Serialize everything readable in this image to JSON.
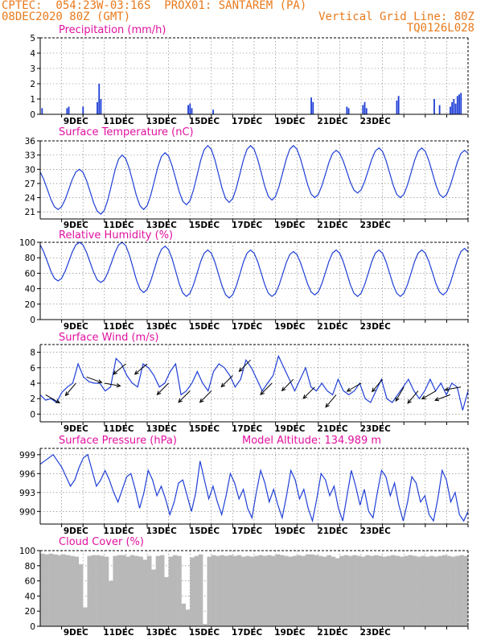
{
  "header": {
    "line1": "CPTEC:  054:23W-03:16S  PROX01: SANTAREM (PA)",
    "line2_left": "08DEC2020 80Z (GMT)",
    "line2_right": "Vertical Grid Line: 80Z",
    "line3_right": "TQ0126L028"
  },
  "colors": {
    "header": "#e87a1c",
    "title": "#e0119f",
    "series": "#1f3fd6",
    "axis": "#000000",
    "cloud": "#b8b8b8",
    "arrow": "#000000"
  },
  "date_ticks": [
    "9DEC",
    "11DEC",
    "13DEC",
    "15DEC",
    "17DEC",
    "19DEC",
    "21DEC",
    "23DEC"
  ],
  "chart_data": [
    {
      "type": "bar",
      "title": "Precipitation (mm/h)",
      "ylim": [
        0,
        5
      ],
      "yticks": [
        "0",
        "1",
        "2",
        "3",
        "4",
        "5"
      ],
      "x_unit": "hours since 08DEC2020 80Z",
      "events": [
        {
          "x": 1,
          "y": 0.4
        },
        {
          "x": 15,
          "y": 0.4
        },
        {
          "x": 16,
          "y": 0.5
        },
        {
          "x": 24,
          "y": 0.5
        },
        {
          "x": 32,
          "y": 0.8
        },
        {
          "x": 33,
          "y": 2.0
        },
        {
          "x": 34,
          "y": 1.0
        },
        {
          "x": 83,
          "y": 0.6
        },
        {
          "x": 84,
          "y": 0.7
        },
        {
          "x": 85,
          "y": 0.4
        },
        {
          "x": 97,
          "y": 0.3
        },
        {
          "x": 152,
          "y": 1.1
        },
        {
          "x": 153,
          "y": 0.8
        },
        {
          "x": 172,
          "y": 0.5
        },
        {
          "x": 173,
          "y": 0.4
        },
        {
          "x": 181,
          "y": 0.6
        },
        {
          "x": 182,
          "y": 0.8
        },
        {
          "x": 183,
          "y": 0.4
        },
        {
          "x": 200,
          "y": 0.9
        },
        {
          "x": 201,
          "y": 1.2
        },
        {
          "x": 221,
          "y": 1.0
        },
        {
          "x": 224,
          "y": 0.6
        },
        {
          "x": 230,
          "y": 0.5
        },
        {
          "x": 231,
          "y": 0.8
        },
        {
          "x": 232,
          "y": 1.0
        },
        {
          "x": 233,
          "y": 0.7
        },
        {
          "x": 234,
          "y": 1.2
        },
        {
          "x": 235,
          "y": 1.3
        },
        {
          "x": 236,
          "y": 1.4
        }
      ],
      "grid": true
    },
    {
      "type": "line",
      "title": "Surface Temperature (nC)",
      "ylim": [
        19.5,
        36
      ],
      "yticks": [
        "21",
        "24",
        "27",
        "30",
        "33",
        "36"
      ],
      "peaks": [
        30.0,
        33.0,
        33.5,
        35.0,
        35.0,
        35.0,
        34.0,
        34.5,
        34.5,
        34.0,
        33.0,
        32.0,
        33.0,
        34.0,
        33.0,
        31.5
      ],
      "troughs": [
        21.5,
        20.5,
        21.5,
        22.5,
        23.0,
        23.5,
        24.0,
        25.0,
        24.0,
        24.0,
        25.0,
        25.0,
        24.0,
        24.5,
        25.0,
        25.0
      ],
      "grid": true
    },
    {
      "type": "line",
      "title": "Relative Humidity (%)",
      "ylim": [
        0,
        100
      ],
      "yticks": [
        "0",
        "20",
        "40",
        "60",
        "80",
        "100"
      ],
      "peaks": [
        100,
        100,
        95,
        90,
        90,
        88,
        90,
        90,
        90,
        92,
        90,
        85,
        82,
        85,
        93,
        92
      ],
      "troughs": [
        50,
        48,
        35,
        30,
        28,
        30,
        32,
        30,
        30,
        32,
        32,
        38,
        42,
        40,
        38,
        45
      ],
      "grid": true
    },
    {
      "type": "line",
      "title": "Surface Wind (m/s)",
      "ylim": [
        -1,
        9
      ],
      "yticks": [
        "0",
        "2",
        "4",
        "6",
        "8"
      ],
      "values": [
        2.5,
        1.8,
        2.0,
        1.5,
        2.8,
        3.5,
        4.0,
        6.5,
        4.8,
        4.2,
        4.0,
        4.0,
        3.0,
        3.5,
        7.2,
        6.5,
        5.0,
        4.0,
        3.5,
        6.5,
        6.0,
        5.0,
        3.5,
        4.0,
        5.5,
        6.5,
        2.5,
        3.0,
        4.0,
        5.5,
        4.0,
        3.0,
        5.5,
        6.5,
        6.0,
        5.0,
        3.5,
        4.5,
        7.0,
        6.0,
        4.5,
        3.0,
        4.0,
        5.0,
        7.5,
        6.0,
        4.5,
        3.0,
        4.5,
        6.0,
        3.5,
        3.0,
        4.0,
        3.0,
        2.5,
        4.5,
        3.0,
        2.5,
        3.0,
        4.0,
        2.0,
        1.5,
        3.0,
        4.5,
        2.0,
        1.5,
        2.5,
        3.5,
        4.5,
        3.0,
        2.0,
        3.0,
        4.5,
        3.0,
        4.0,
        2.5,
        4.0,
        3.5,
        0.5,
        3.0
      ],
      "arrows": [
        {
          "t": 3,
          "dir": 300
        },
        {
          "t": 20,
          "dir": 40
        },
        {
          "t": 26,
          "dir": 290
        },
        {
          "t": 36,
          "dir": 280
        },
        {
          "t": 48,
          "dir": 50
        },
        {
          "t": 60,
          "dir": 50
        },
        {
          "t": 72,
          "dir": 45
        },
        {
          "t": 84,
          "dir": 45
        },
        {
          "t": 96,
          "dir": 45
        },
        {
          "t": 108,
          "dir": 45
        },
        {
          "t": 118,
          "dir": 45
        },
        {
          "t": 130,
          "dir": 45
        },
        {
          "t": 142,
          "dir": 45
        },
        {
          "t": 154,
          "dir": 45
        },
        {
          "t": 166,
          "dir": 40
        },
        {
          "t": 180,
          "dir": 60
        },
        {
          "t": 192,
          "dir": 40
        },
        {
          "t": 204,
          "dir": 30
        },
        {
          "t": 212,
          "dir": 40
        },
        {
          "t": 222,
          "dir": 60
        },
        {
          "t": 230,
          "dir": 70
        },
        {
          "t": 236,
          "dir": 80
        }
      ],
      "grid": true
    },
    {
      "type": "line",
      "title": "Surface Pressure (hPa)",
      "annotation": "Model Altitude: 134.989  m",
      "ylim": [
        988.0,
        1000.0
      ],
      "yticks": [
        "990",
        "993",
        "996",
        "999"
      ],
      "values": [
        997.5,
        998.0,
        998.5,
        999.0,
        998.0,
        997.0,
        995.5,
        994.0,
        995.0,
        997.0,
        998.5,
        999.0,
        996.5,
        994.0,
        995.0,
        996.5,
        995.0,
        993.0,
        991.5,
        993.5,
        995.5,
        996.0,
        993.5,
        990.5,
        993.0,
        996.5,
        995.0,
        992.5,
        994.0,
        992.0,
        989.5,
        991.5,
        994.5,
        995.0,
        992.5,
        990.0,
        993.0,
        998.0,
        995.0,
        992.0,
        994.0,
        991.5,
        989.5,
        992.5,
        996.0,
        994.5,
        992.0,
        993.5,
        990.5,
        989.0,
        993.0,
        996.5,
        994.5,
        991.5,
        993.5,
        991.0,
        989.0,
        992.5,
        996.5,
        995.0,
        992.0,
        993.5,
        990.5,
        988.5,
        992.0,
        996.0,
        995.0,
        992.5,
        994.0,
        990.5,
        988.5,
        992.5,
        996.5,
        994.0,
        991.0,
        993.5,
        990.0,
        989.0,
        993.0,
        996.5,
        995.5,
        992.5,
        994.5,
        991.0,
        988.5,
        991.5,
        995.5,
        994.5,
        991.5,
        992.5,
        989.5,
        988.5,
        992.0,
        996.5,
        995.0,
        991.5,
        993.0,
        989.5,
        988.5,
        990.0
      ],
      "grid": true
    },
    {
      "type": "area",
      "title": "Cloud Cover (%)",
      "ylim": [
        0,
        100
      ],
      "yticks": [
        "0",
        "20",
        "40",
        "60",
        "80",
        "100"
      ],
      "values": [
        96,
        95,
        96,
        95,
        94,
        95,
        94,
        93,
        92,
        82,
        25,
        93,
        94,
        94,
        93,
        92,
        60,
        93,
        94,
        94,
        92,
        94,
        93,
        92,
        88,
        93,
        75,
        93,
        94,
        65,
        92,
        94,
        93,
        30,
        22,
        91,
        93,
        95,
        3,
        92,
        94,
        93,
        94,
        93,
        94,
        93,
        94,
        92,
        93,
        92,
        93,
        94,
        93,
        94,
        93,
        95,
        94,
        93,
        92,
        93,
        94,
        93,
        95,
        95,
        94,
        93,
        92,
        94,
        92,
        90,
        93,
        94,
        93,
        94,
        93,
        92,
        94,
        93,
        94,
        93,
        92,
        93,
        94,
        93,
        92,
        93,
        94,
        93,
        92,
        93,
        92,
        93,
        92,
        93,
        94,
        93,
        92,
        93,
        94,
        93
      ],
      "grid": true
    }
  ]
}
